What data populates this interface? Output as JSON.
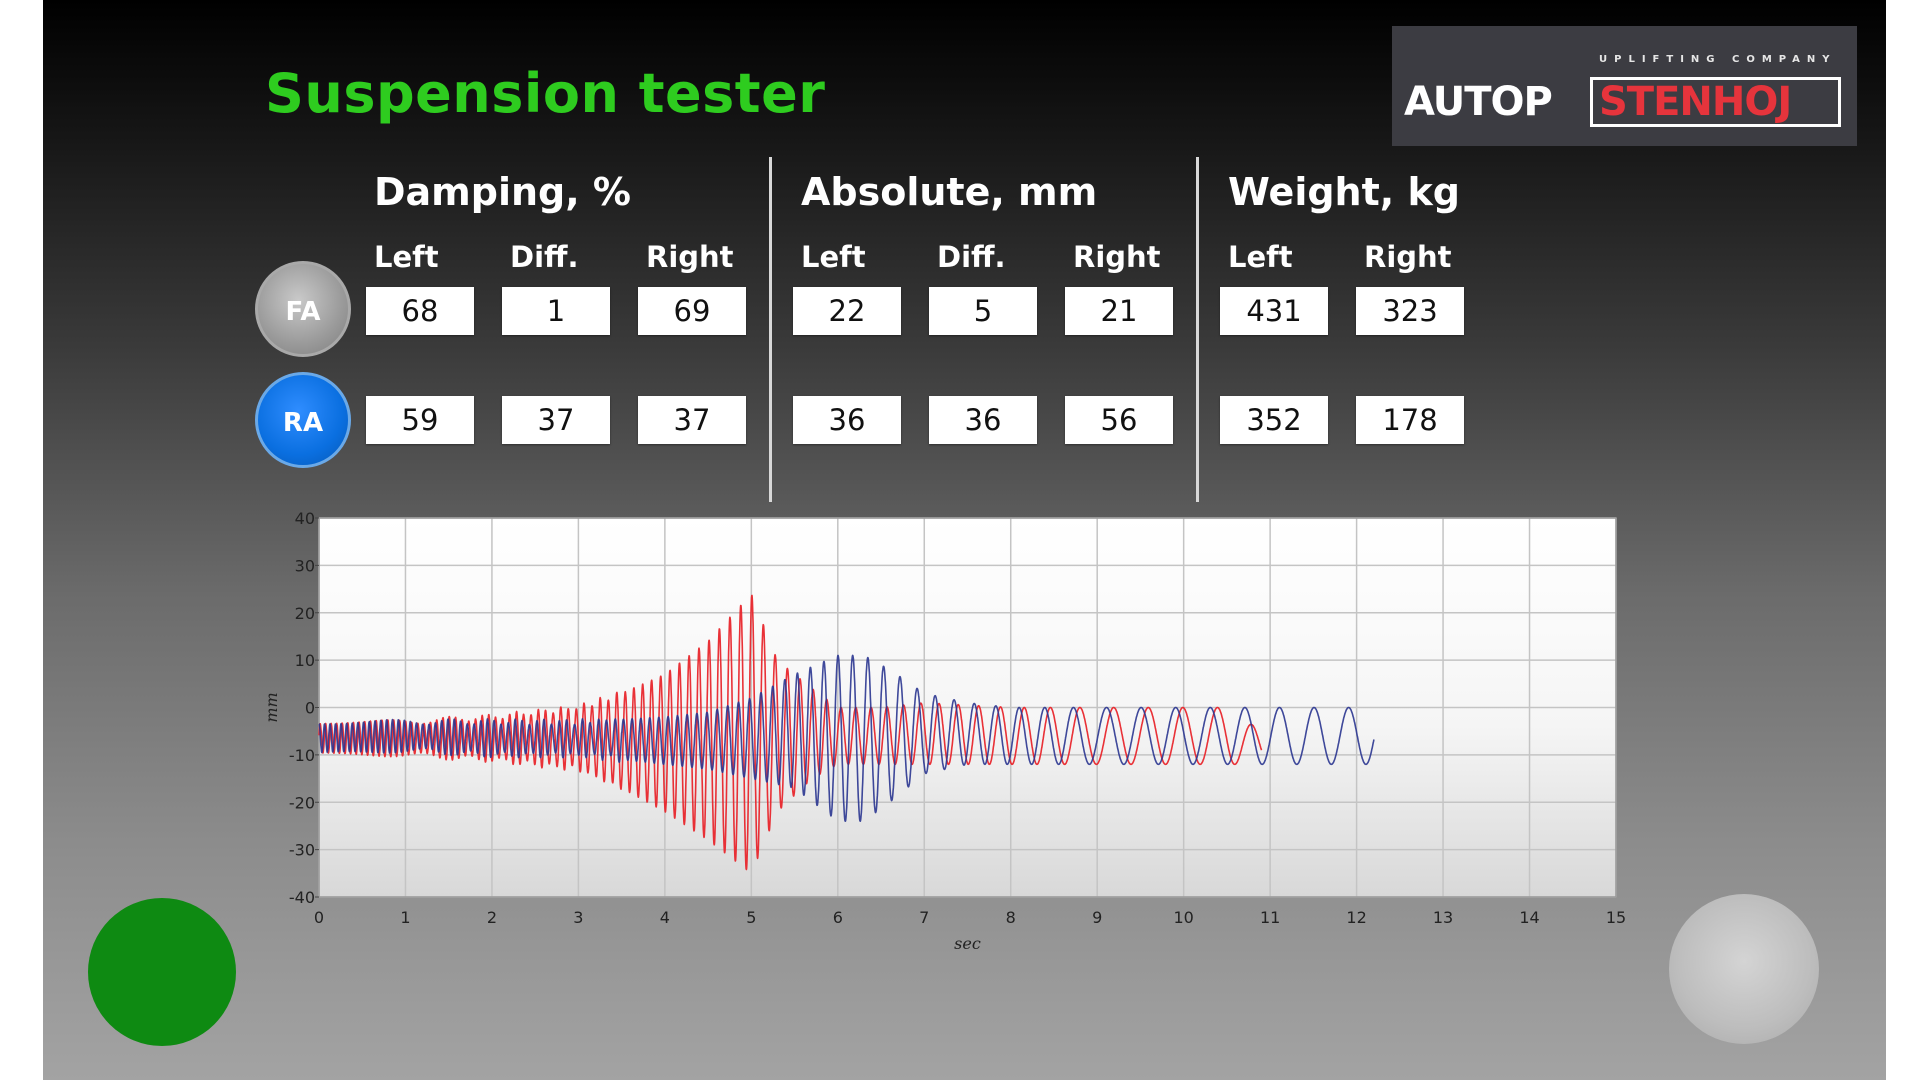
{
  "app": {
    "title": "Suspension tester"
  },
  "logo": {
    "tagline": "UPLIFTING COMPANY",
    "brand_left": "AUTOP",
    "brand_right": "STENHOJ",
    "brand_left_color": "#ffffff",
    "brand_right_color": "#e6343c"
  },
  "sections": {
    "damping": {
      "title": "Damping, %",
      "columns": [
        "Left",
        "Diff.",
        "Right"
      ],
      "FA": [
        "68",
        "1",
        "69"
      ],
      "RA": [
        "59",
        "37",
        "37"
      ]
    },
    "absolute": {
      "title": "Absolute, mm",
      "columns": [
        "Left",
        "Diff.",
        "Right"
      ],
      "FA": [
        "22",
        "5",
        "21"
      ],
      "RA": [
        "36",
        "36",
        "56"
      ]
    },
    "weight": {
      "title": "Weight, kg",
      "columns": [
        "Left",
        "Right"
      ],
      "FA": [
        "431",
        "323"
      ],
      "RA": [
        "352",
        "178"
      ]
    }
  },
  "axles": {
    "front": {
      "label": "FA",
      "color": "#a0a0a0"
    },
    "rear": {
      "label": "RA",
      "color": "#0a6fe0"
    }
  },
  "buttons": {
    "start": {
      "color": "#0e8a12",
      "icon": "green-circle-button"
    },
    "stop": {
      "color": "#c0c0c0",
      "icon": "gray-circle-button"
    }
  },
  "chart_data": {
    "type": "line",
    "title": "",
    "xlabel": "sec",
    "ylabel": "mm",
    "xlim": [
      0,
      15
    ],
    "ylim": [
      -40,
      40
    ],
    "xticks": [
      0,
      1,
      2,
      3,
      4,
      5,
      6,
      7,
      8,
      9,
      10,
      11,
      12,
      13,
      14,
      15
    ],
    "yticks": [
      40,
      30,
      20,
      10,
      0,
      -10,
      -20,
      -30,
      -40
    ],
    "grid": true,
    "series": [
      {
        "color": "#e8262c",
        "envelope": {
          "t": [
            0,
            1,
            2,
            3,
            3.5,
            4,
            4.5,
            5,
            5.3,
            5.7,
            6,
            6.5,
            7,
            8,
            9,
            10,
            10.5,
            10.9
          ],
          "max": [
            -4,
            -3,
            -2,
            0,
            3,
            7,
            14,
            24,
            10,
            4,
            0,
            0,
            1,
            0,
            0,
            0,
            0,
            -5
          ],
          "min": [
            -9,
            -10,
            -11,
            -13,
            -17,
            -22,
            -28,
            -35,
            -22,
            -15,
            -12,
            -12,
            -12,
            -12,
            -12,
            -12,
            -12,
            -12
          ]
        },
        "frequency_start_hz": 16,
        "frequency_end_hz": 2.5,
        "end_sec": 10.9
      },
      {
        "color": "#2a3590",
        "envelope": {
          "t": [
            0,
            1,
            2,
            3,
            4,
            4.5,
            5,
            5.5,
            6,
            6.3,
            6.6,
            7,
            7.5,
            8,
            9,
            10,
            11,
            12,
            12.2
          ],
          "max": [
            -4,
            -3,
            -3,
            -3,
            -2,
            -1,
            2,
            7,
            11,
            11,
            8,
            3,
            1,
            0,
            0,
            0,
            0,
            0,
            0
          ],
          "min": [
            -9,
            -9,
            -10,
            -10,
            -12,
            -13,
            -15,
            -17,
            -24,
            -24,
            -20,
            -14,
            -12,
            -12,
            -12,
            -12,
            -12,
            -12,
            -12
          ]
        },
        "frequency_start_hz": 16,
        "frequency_end_hz": 2.5,
        "end_sec": 12.2
      }
    ]
  }
}
